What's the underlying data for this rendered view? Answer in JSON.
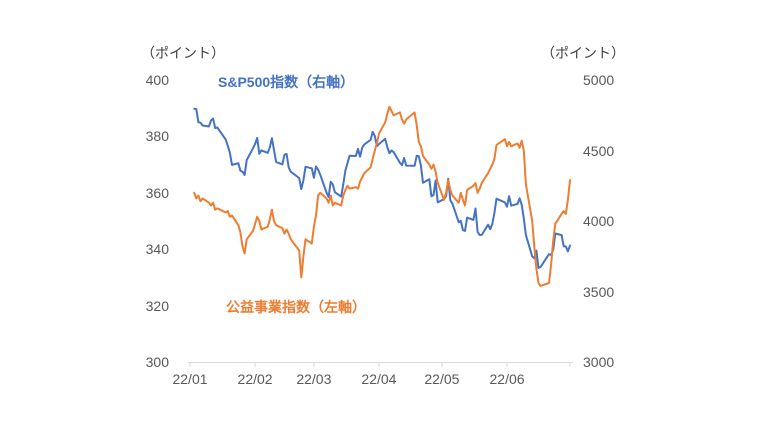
{
  "chart_data": {
    "type": "line",
    "title": "",
    "unit_label_left": "（ポイント）",
    "unit_label_right": "（ポイント）",
    "grid": false,
    "legend_position": "inline-annotations",
    "x_tick_labels": [
      "22/01",
      "22/02",
      "22/03",
      "22/04",
      "22/05",
      "22/06"
    ],
    "left_axis": {
      "label": "（ポイント）",
      "min": 300,
      "max": 400,
      "ticks": [
        300,
        320,
        340,
        360,
        380,
        400
      ]
    },
    "right_axis": {
      "label": "（ポイント）",
      "min": 3000,
      "max": 5000,
      "ticks": [
        3000,
        3500,
        4000,
        4500,
        5000
      ]
    },
    "axis_line_color": "#D9D9D9",
    "tick_label_color": "#595959",
    "dates": [
      "1/3",
      "1/4",
      "1/5",
      "1/6",
      "1/7",
      "1/10",
      "1/11",
      "1/12",
      "1/13",
      "1/14",
      "1/18",
      "1/19",
      "1/20",
      "1/21",
      "1/24",
      "1/25",
      "1/26",
      "1/27",
      "1/28",
      "1/31",
      "2/1",
      "2/2",
      "2/3",
      "2/4",
      "2/7",
      "2/8",
      "2/9",
      "2/10",
      "2/11",
      "2/14",
      "2/15",
      "2/16",
      "2/17",
      "2/18",
      "2/22",
      "2/23",
      "2/24",
      "2/25",
      "2/28",
      "3/1",
      "3/2",
      "3/3",
      "3/4",
      "3/7",
      "3/8",
      "3/9",
      "3/10",
      "3/11",
      "3/14",
      "3/15",
      "3/16",
      "3/17",
      "3/18",
      "3/21",
      "3/22",
      "3/23",
      "3/24",
      "3/25",
      "3/28",
      "3/29",
      "3/30",
      "3/31",
      "4/1",
      "4/4",
      "4/5",
      "4/6",
      "4/7",
      "4/8",
      "4/11",
      "4/12",
      "4/13",
      "4/14",
      "4/18",
      "4/19",
      "4/20",
      "4/21",
      "4/22",
      "4/25",
      "4/26",
      "4/27",
      "4/28",
      "4/29",
      "5/2",
      "5/3",
      "5/4",
      "5/5",
      "5/6",
      "5/9",
      "5/10",
      "5/11",
      "5/12",
      "5/13",
      "5/16",
      "5/17",
      "5/18",
      "5/19",
      "5/20",
      "5/23",
      "5/24",
      "5/25",
      "5/26",
      "5/27",
      "5/31",
      "6/1",
      "6/2",
      "6/3",
      "6/6",
      "6/7",
      "6/8",
      "6/9",
      "6/10",
      "6/13",
      "6/14",
      "6/15",
      "6/16",
      "6/17",
      "6/21",
      "6/22",
      "6/23",
      "6/24",
      "6/27",
      "6/28",
      "6/29",
      "6/30",
      "7/1"
    ],
    "series": [
      {
        "name": "S&P500指数（右軸）",
        "axis": "right",
        "color": "#4472C4",
        "values": [
          4796.6,
          4793.5,
          4700.6,
          4696.1,
          4677.0,
          4670.3,
          4713.1,
          4726.4,
          4659.0,
          4662.9,
          4577.1,
          4532.8,
          4482.7,
          4397.9,
          4410.1,
          4356.5,
          4349.9,
          4326.5,
          4431.9,
          4515.6,
          4546.5,
          4589.4,
          4477.4,
          4500.5,
          4483.9,
          4521.5,
          4587.2,
          4504.1,
          4418.6,
          4401.7,
          4471.1,
          4475.0,
          4380.3,
          4348.9,
          4304.8,
          4225.5,
          4288.7,
          4384.7,
          4373.9,
          4306.3,
          4386.5,
          4363.5,
          4328.9,
          4201.1,
          4170.7,
          4277.9,
          4259.5,
          4204.3,
          4173.1,
          4262.5,
          4357.9,
          4411.7,
          4463.1,
          4461.2,
          4511.6,
          4456.2,
          4520.2,
          4543.1,
          4575.5,
          4631.6,
          4602.5,
          4530.4,
          4545.9,
          4582.6,
          4525.1,
          4481.2,
          4500.2,
          4488.3,
          4412.5,
          4397.5,
          4446.6,
          4392.6,
          4391.7,
          4462.2,
          4459.5,
          4393.7,
          4271.8,
          4296.1,
          4175.2,
          4184.0,
          4287.5,
          4131.9,
          4155.4,
          4175.5,
          4300.2,
          4146.9,
          4123.3,
          3991.2,
          4001.1,
          3935.2,
          3930.1,
          4023.9,
          4008.0,
          4088.9,
          3923.7,
          3900.8,
          3901.4,
          3973.8,
          3941.5,
          3978.7,
          4057.8,
          4158.2,
          4132.2,
          4101.2,
          4176.8,
          4108.5,
          4121.4,
          4160.7,
          4115.8,
          4017.8,
          3900.9,
          3749.6,
          3735.5,
          3790.0,
          3666.8,
          3674.8,
          3764.8,
          3759.9,
          3795.7,
          3911.7,
          3900.1,
          3821.6,
          3818.8,
          3785.4,
          3825.3
        ]
      },
      {
        "name": "公益事業指数（左軸）",
        "axis": "left",
        "color": "#ED7D31",
        "values": [
          360.0,
          358.0,
          359.0,
          357.0,
          358.0,
          356.5,
          355.5,
          356.5,
          354.0,
          354.5,
          353.0,
          353.5,
          351.5,
          352.0,
          348.5,
          346.0,
          341.0,
          338.5,
          343.5,
          346.5,
          349.0,
          351.5,
          350.0,
          347.0,
          348.0,
          350.5,
          354.0,
          350.0,
          348.5,
          347.5,
          345.5,
          347.0,
          345.5,
          343.5,
          339.5,
          330.0,
          337.5,
          343.5,
          342.0,
          348.0,
          352.0,
          359.0,
          360.0,
          358.0,
          356.5,
          359.0,
          355.5,
          356.5,
          355.5,
          359.0,
          361.0,
          362.5,
          361.5,
          362.0,
          361.5,
          364.0,
          365.5,
          367.0,
          369.0,
          372.0,
          375.0,
          377.5,
          381.0,
          385.0,
          388.0,
          390.5,
          389.0,
          387.5,
          388.5,
          386.0,
          384.5,
          386.0,
          388.5,
          384.0,
          378.0,
          376.5,
          373.0,
          370.0,
          368.5,
          370.0,
          367.5,
          363.5,
          357.5,
          360.0,
          364.5,
          361.0,
          359.0,
          356.5,
          360.0,
          357.5,
          355.5,
          361.0,
          362.5,
          363.5,
          360.0,
          361.5,
          363.5,
          367.0,
          368.5,
          370.0,
          372.0,
          377.0,
          379.0,
          376.5,
          378.0,
          376.5,
          377.5,
          376.0,
          378.5,
          375.0,
          363.0,
          350.0,
          341.0,
          333.0,
          328.0,
          327.0,
          328.0,
          334.5,
          343.0,
          349.0,
          352.5,
          353.5,
          352.5,
          357.5,
          364.5
        ]
      }
    ]
  }
}
